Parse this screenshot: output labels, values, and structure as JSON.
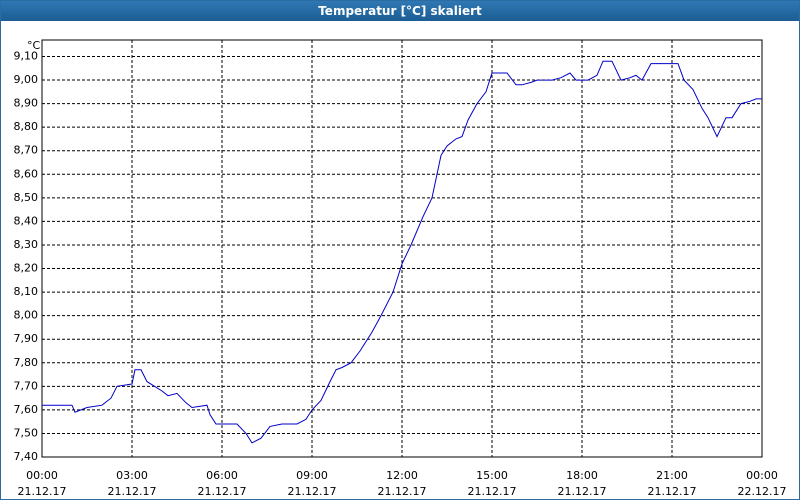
{
  "chart_data": {
    "type": "line",
    "title": "Temperatur [°C] skaliert",
    "y_label": "°C",
    "x": [
      0,
      0.5,
      1.0,
      1.1,
      1.5,
      2.0,
      2.3,
      2.5,
      3.0,
      3.1,
      3.3,
      3.5,
      4.0,
      4.2,
      4.5,
      4.8,
      5.0,
      5.5,
      5.6,
      5.8,
      6.5,
      6.8,
      7.0,
      7.3,
      7.6,
      8.0,
      8.5,
      8.8,
      9.0,
      9.3,
      9.6,
      9.8,
      10.0,
      10.3,
      10.6,
      11.0,
      11.3,
      11.7,
      12.0,
      12.3,
      12.7,
      13.0,
      13.3,
      13.5,
      13.8,
      14.0,
      14.2,
      14.5,
      14.8,
      15.0,
      15.2,
      15.5,
      15.8,
      16.0,
      16.3,
      16.5,
      17.0,
      17.3,
      17.6,
      17.8,
      18.2,
      18.5,
      18.7,
      19.0,
      19.3,
      19.6,
      19.8,
      20.0,
      20.3,
      21.0,
      21.2,
      21.4,
      21.7,
      22.0,
      22.2,
      22.5,
      22.8,
      23.0,
      23.3,
      23.6,
      23.8,
      24.0
    ],
    "series": [
      {
        "name": "Temperatur",
        "color": "#0000c8",
        "values": [
          7.62,
          7.62,
          7.62,
          7.59,
          7.61,
          7.62,
          7.65,
          7.7,
          7.71,
          7.77,
          7.77,
          7.72,
          7.68,
          7.66,
          7.67,
          7.63,
          7.61,
          7.62,
          7.58,
          7.54,
          7.54,
          7.5,
          7.46,
          7.48,
          7.53,
          7.54,
          7.54,
          7.56,
          7.6,
          7.64,
          7.72,
          7.77,
          7.78,
          7.8,
          7.85,
          7.93,
          8.0,
          8.1,
          8.22,
          8.3,
          8.42,
          8.5,
          8.68,
          8.72,
          8.75,
          8.76,
          8.83,
          8.9,
          8.95,
          9.03,
          9.03,
          9.03,
          8.98,
          8.98,
          8.99,
          9.0,
          9.0,
          9.01,
          9.03,
          9.0,
          9.0,
          9.02,
          9.08,
          9.08,
          9.0,
          9.01,
          9.02,
          9.0,
          9.07,
          9.07,
          9.07,
          9.0,
          8.96,
          8.88,
          8.84,
          8.76,
          8.84,
          8.84,
          8.9,
          8.91,
          8.92,
          8.92
        ]
      }
    ],
    "xlim": [
      0,
      24
    ],
    "ylim": [
      7.4,
      9.17
    ],
    "xticks": [
      {
        "value": 0,
        "label": "00:00",
        "date": "21.12.17"
      },
      {
        "value": 3,
        "label": "03:00",
        "date": "21.12.17"
      },
      {
        "value": 6,
        "label": "06:00",
        "date": "21.12.17"
      },
      {
        "value": 9,
        "label": "09:00",
        "date": "21.12.17"
      },
      {
        "value": 12,
        "label": "12:00",
        "date": "21.12.17"
      },
      {
        "value": 15,
        "label": "15:00",
        "date": "21.12.17"
      },
      {
        "value": 18,
        "label": "18:00",
        "date": "21.12.17"
      },
      {
        "value": 21,
        "label": "21:00",
        "date": "21.12.17"
      },
      {
        "value": 24,
        "label": "00:00",
        "date": "22.12.17"
      }
    ],
    "yticks": [
      {
        "value": 7.4,
        "label": "7,40"
      },
      {
        "value": 7.5,
        "label": "7,50"
      },
      {
        "value": 7.6,
        "label": "7,60"
      },
      {
        "value": 7.7,
        "label": "7,70"
      },
      {
        "value": 7.8,
        "label": "7,80"
      },
      {
        "value": 7.9,
        "label": "7,90"
      },
      {
        "value": 8.0,
        "label": "8,00"
      },
      {
        "value": 8.1,
        "label": "8,10"
      },
      {
        "value": 8.2,
        "label": "8,20"
      },
      {
        "value": 8.3,
        "label": "8,30"
      },
      {
        "value": 8.4,
        "label": "8,40"
      },
      {
        "value": 8.5,
        "label": "8,50"
      },
      {
        "value": 8.6,
        "label": "8,60"
      },
      {
        "value": 8.7,
        "label": "8,70"
      },
      {
        "value": 8.8,
        "label": "8,80"
      },
      {
        "value": 8.9,
        "label": "8,90"
      },
      {
        "value": 9.0,
        "label": "9,00"
      },
      {
        "value": 9.1,
        "label": "9,10"
      }
    ],
    "grid": true
  }
}
